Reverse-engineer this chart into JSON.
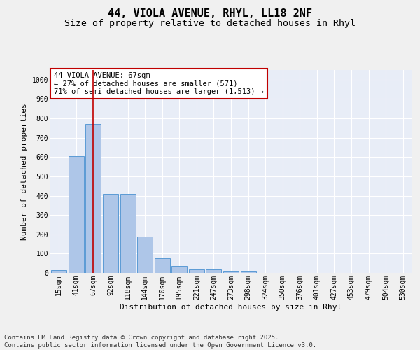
{
  "title_line1": "44, VIOLA AVENUE, RHYL, LL18 2NF",
  "title_line2": "Size of property relative to detached houses in Rhyl",
  "xlabel": "Distribution of detached houses by size in Rhyl",
  "ylabel": "Number of detached properties",
  "categories": [
    "15sqm",
    "41sqm",
    "67sqm",
    "92sqm",
    "118sqm",
    "144sqm",
    "170sqm",
    "195sqm",
    "221sqm",
    "247sqm",
    "273sqm",
    "298sqm",
    "324sqm",
    "350sqm",
    "376sqm",
    "401sqm",
    "427sqm",
    "453sqm",
    "479sqm",
    "504sqm",
    "530sqm"
  ],
  "values": [
    15,
    605,
    770,
    410,
    410,
    190,
    75,
    38,
    18,
    18,
    10,
    12,
    0,
    0,
    0,
    0,
    0,
    0,
    0,
    0,
    0
  ],
  "bar_color": "#aec6e8",
  "bar_edge_color": "#5b9bd5",
  "vline_x": 2,
  "vline_color": "#c00000",
  "annotation_text": "44 VIOLA AVENUE: 67sqm\n← 27% of detached houses are smaller (571)\n71% of semi-detached houses are larger (1,513) →",
  "annotation_box_color": "#c00000",
  "ylim": [
    0,
    1050
  ],
  "yticks": [
    0,
    100,
    200,
    300,
    400,
    500,
    600,
    700,
    800,
    900,
    1000
  ],
  "background_color": "#e8edf7",
  "grid_color": "#ffffff",
  "fig_background": "#f0f0f0",
  "footer_text": "Contains HM Land Registry data © Crown copyright and database right 2025.\nContains public sector information licensed under the Open Government Licence v3.0.",
  "title_fontsize": 11,
  "subtitle_fontsize": 9.5,
  "axis_label_fontsize": 8,
  "tick_fontsize": 7,
  "annotation_fontsize": 7.5,
  "footer_fontsize": 6.5
}
